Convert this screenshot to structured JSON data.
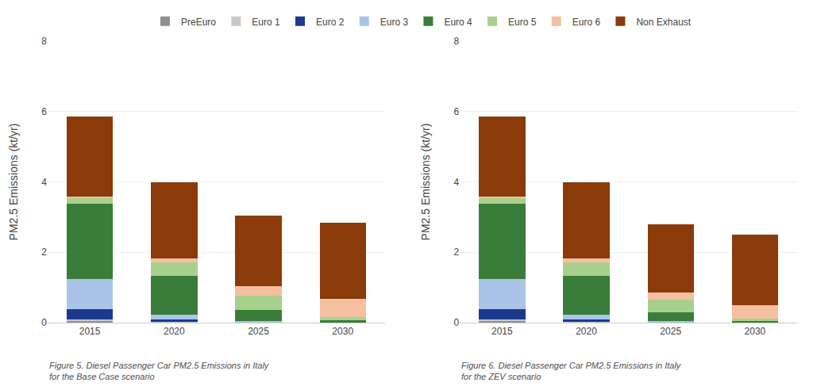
{
  "chart_data": [
    {
      "type": "bar",
      "stacked": true,
      "grid": true,
      "legend": "top",
      "title": "Figure 5. Diesel Passenger Car PM2.5 Emissions in Italy\nfor the Base Case scenario",
      "y_label": "PM2.5 Emissions (kt/yr)",
      "categories": [
        2015,
        2020,
        2025,
        2030
      ],
      "ylim": [
        0,
        8
      ],
      "yticks": [
        0,
        2,
        4,
        6,
        8
      ],
      "series": [
        {
          "name": "PreEuro",
          "color": "#909090",
          "values": [
            0.05,
            0.01,
            0.0,
            0.0
          ]
        },
        {
          "name": "Euro 1",
          "color": "#c8c8c8",
          "values": [
            0.05,
            0.01,
            0.0,
            0.0
          ]
        },
        {
          "name": "Euro 2",
          "color": "#1a3a8f",
          "values": [
            0.28,
            0.08,
            0.01,
            0.0
          ]
        },
        {
          "name": "Euro 3",
          "color": "#aac4e8",
          "values": [
            0.85,
            0.13,
            0.04,
            0.01
          ]
        },
        {
          "name": "Euro 4",
          "color": "#3a7d3a",
          "values": [
            2.15,
            1.1,
            0.3,
            0.05
          ]
        },
        {
          "name": "Euro 5",
          "color": "#a8d08d",
          "values": [
            0.15,
            0.38,
            0.42,
            0.1
          ]
        },
        {
          "name": "Euro 6",
          "color": "#f4c0a0",
          "values": [
            0.05,
            0.12,
            0.27,
            0.52
          ]
        },
        {
          "name": "Non Exhaust",
          "color": "#8b3a0a",
          "values": [
            2.27,
            2.17,
            2.0,
            2.17
          ]
        }
      ]
    },
    {
      "type": "bar",
      "stacked": true,
      "grid": true,
      "title": "Figure 6. Diesel Passenger Car PM2.5 Emissions in Italy\nfor the ZEV scenario",
      "y_label": "PM2.5 Emissions (kt/yr)",
      "categories": [
        2015,
        2020,
        2025,
        2030
      ],
      "ylim": [
        0,
        8
      ],
      "yticks": [
        0,
        2,
        4,
        6,
        8
      ],
      "series": [
        {
          "name": "PreEuro",
          "color": "#909090",
          "values": [
            0.05,
            0.01,
            0.0,
            0.0
          ]
        },
        {
          "name": "Euro 1",
          "color": "#c8c8c8",
          "values": [
            0.05,
            0.01,
            0.0,
            0.0
          ]
        },
        {
          "name": "Euro 2",
          "color": "#1a3a8f",
          "values": [
            0.28,
            0.08,
            0.01,
            0.0
          ]
        },
        {
          "name": "Euro 3",
          "color": "#aac4e8",
          "values": [
            0.85,
            0.13,
            0.03,
            0.01
          ]
        },
        {
          "name": "Euro 4",
          "color": "#3a7d3a",
          "values": [
            2.15,
            1.1,
            0.25,
            0.03
          ]
        },
        {
          "name": "Euro 5",
          "color": "#a8d08d",
          "values": [
            0.15,
            0.38,
            0.37,
            0.07
          ]
        },
        {
          "name": "Euro 6",
          "color": "#f4c0a0",
          "values": [
            0.05,
            0.12,
            0.2,
            0.38
          ]
        },
        {
          "name": "Non Exhaust",
          "color": "#8b3a0a",
          "values": [
            2.27,
            2.17,
            1.94,
            2.01
          ]
        }
      ]
    }
  ]
}
